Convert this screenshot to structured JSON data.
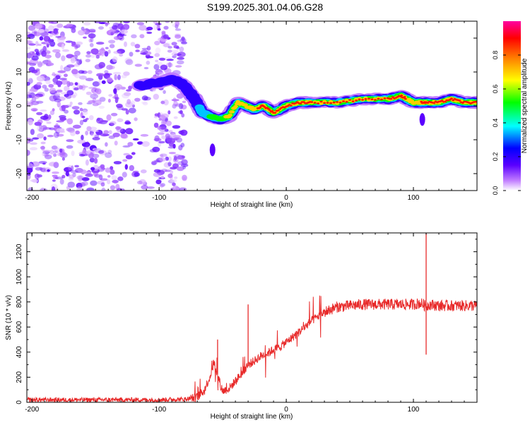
{
  "title": "S199.2025.301.04.06.G28",
  "chart_data": [
    {
      "type": "heatmap",
      "xlabel": "Height of straight line (km)",
      "ylabel": "Frequency (Hz)",
      "xlim": [
        -204,
        150
      ],
      "ylim": [
        -25,
        25
      ],
      "xticks": [
        -200,
        -100,
        0,
        100
      ],
      "yticks": [
        -20,
        -10,
        0,
        10,
        20
      ],
      "colorbar": {
        "label": "Normalized spectral amplitude",
        "range": [
          0,
          1
        ],
        "ticks": [
          0.0,
          0.2,
          0.4,
          0.6,
          0.8
        ],
        "tick_labels": [
          "0.0",
          "0.2",
          "0.4",
          "0.6",
          "0.8"
        ],
        "stops": [
          "#ffffff",
          "#c07cff",
          "#5a00ff",
          "#0000ff",
          "#00ffff",
          "#00ff00",
          "#ffff00",
          "#ff8000",
          "#ff0000",
          "#ff00a0"
        ]
      },
      "noise_region": {
        "x": [
          -204,
          -80
        ],
        "freq": [
          -25,
          25
        ],
        "amplitude": [
          0.0,
          0.2
        ]
      },
      "ridge": {
        "x": [
          -115,
          -100,
          -90,
          -80,
          -72,
          -66,
          -60,
          -52,
          -45,
          -38,
          -32,
          -25,
          -18,
          -10,
          0,
          10,
          20,
          40,
          60,
          80,
          90,
          95,
          100,
          105,
          110,
          120,
          130,
          140,
          150
        ],
        "freq": [
          6,
          7,
          8,
          6,
          2,
          -2,
          -3,
          -4,
          -3,
          1,
          0,
          -1,
          0,
          -2,
          0,
          1,
          1,
          1,
          2,
          2,
          3,
          2,
          1,
          1,
          1,
          1,
          2,
          1,
          1
        ],
        "amplitude": [
          0.2,
          0.25,
          0.3,
          0.28,
          0.3,
          0.35,
          0.5,
          0.6,
          0.75,
          0.8,
          0.85,
          0.85,
          0.88,
          0.9,
          0.92,
          0.95,
          0.95,
          0.95,
          0.95,
          0.95,
          0.9,
          0.85,
          0.8,
          0.85,
          0.9,
          0.95,
          0.95,
          0.95,
          0.95
        ]
      },
      "annotations": [
        {
          "x": -58,
          "freq": -13,
          "amplitude": 0.15,
          "note": "faint blob"
        },
        {
          "x": 107,
          "freq": -4,
          "amplitude": 0.15,
          "note": "faint blob"
        }
      ]
    },
    {
      "type": "line",
      "xlabel": "Height of straight line (km)",
      "ylabel": "SNR (10 * v/v)",
      "xlim": [
        -204,
        150
      ],
      "ylim": [
        0,
        1350
      ],
      "xticks": [
        -200,
        -100,
        0,
        100
      ],
      "yticks": [
        0,
        200,
        400,
        600,
        800,
        1000,
        1200
      ],
      "series": [
        {
          "name": "SNR",
          "color": "#e82a2a",
          "x": [
            -204,
            -150,
            -100,
            -80,
            -70,
            -65,
            -60,
            -57,
            -55,
            -52,
            -50,
            -45,
            -40,
            -35,
            -30,
            -25,
            -20,
            -15,
            -10,
            -5,
            0,
            10,
            20,
            30,
            40,
            50,
            60,
            80,
            100,
            105,
            108,
            110,
            112,
            120,
            150
          ],
          "y": [
            20,
            20,
            20,
            25,
            40,
            90,
            200,
            320,
            260,
            150,
            90,
            110,
            170,
            230,
            300,
            330,
            370,
            390,
            420,
            440,
            480,
            560,
            650,
            720,
            760,
            770,
            780,
            780,
            780,
            790,
            780,
            760,
            780,
            770,
            770
          ]
        }
      ],
      "annotations": [
        {
          "x": -54,
          "y": 500,
          "note": "spike"
        },
        {
          "x": -30,
          "y": 780,
          "note": "spike"
        },
        {
          "x": 110,
          "y": 1350,
          "note": "spike"
        },
        {
          "x": 110,
          "y": 380,
          "note": "dip"
        }
      ]
    }
  ]
}
